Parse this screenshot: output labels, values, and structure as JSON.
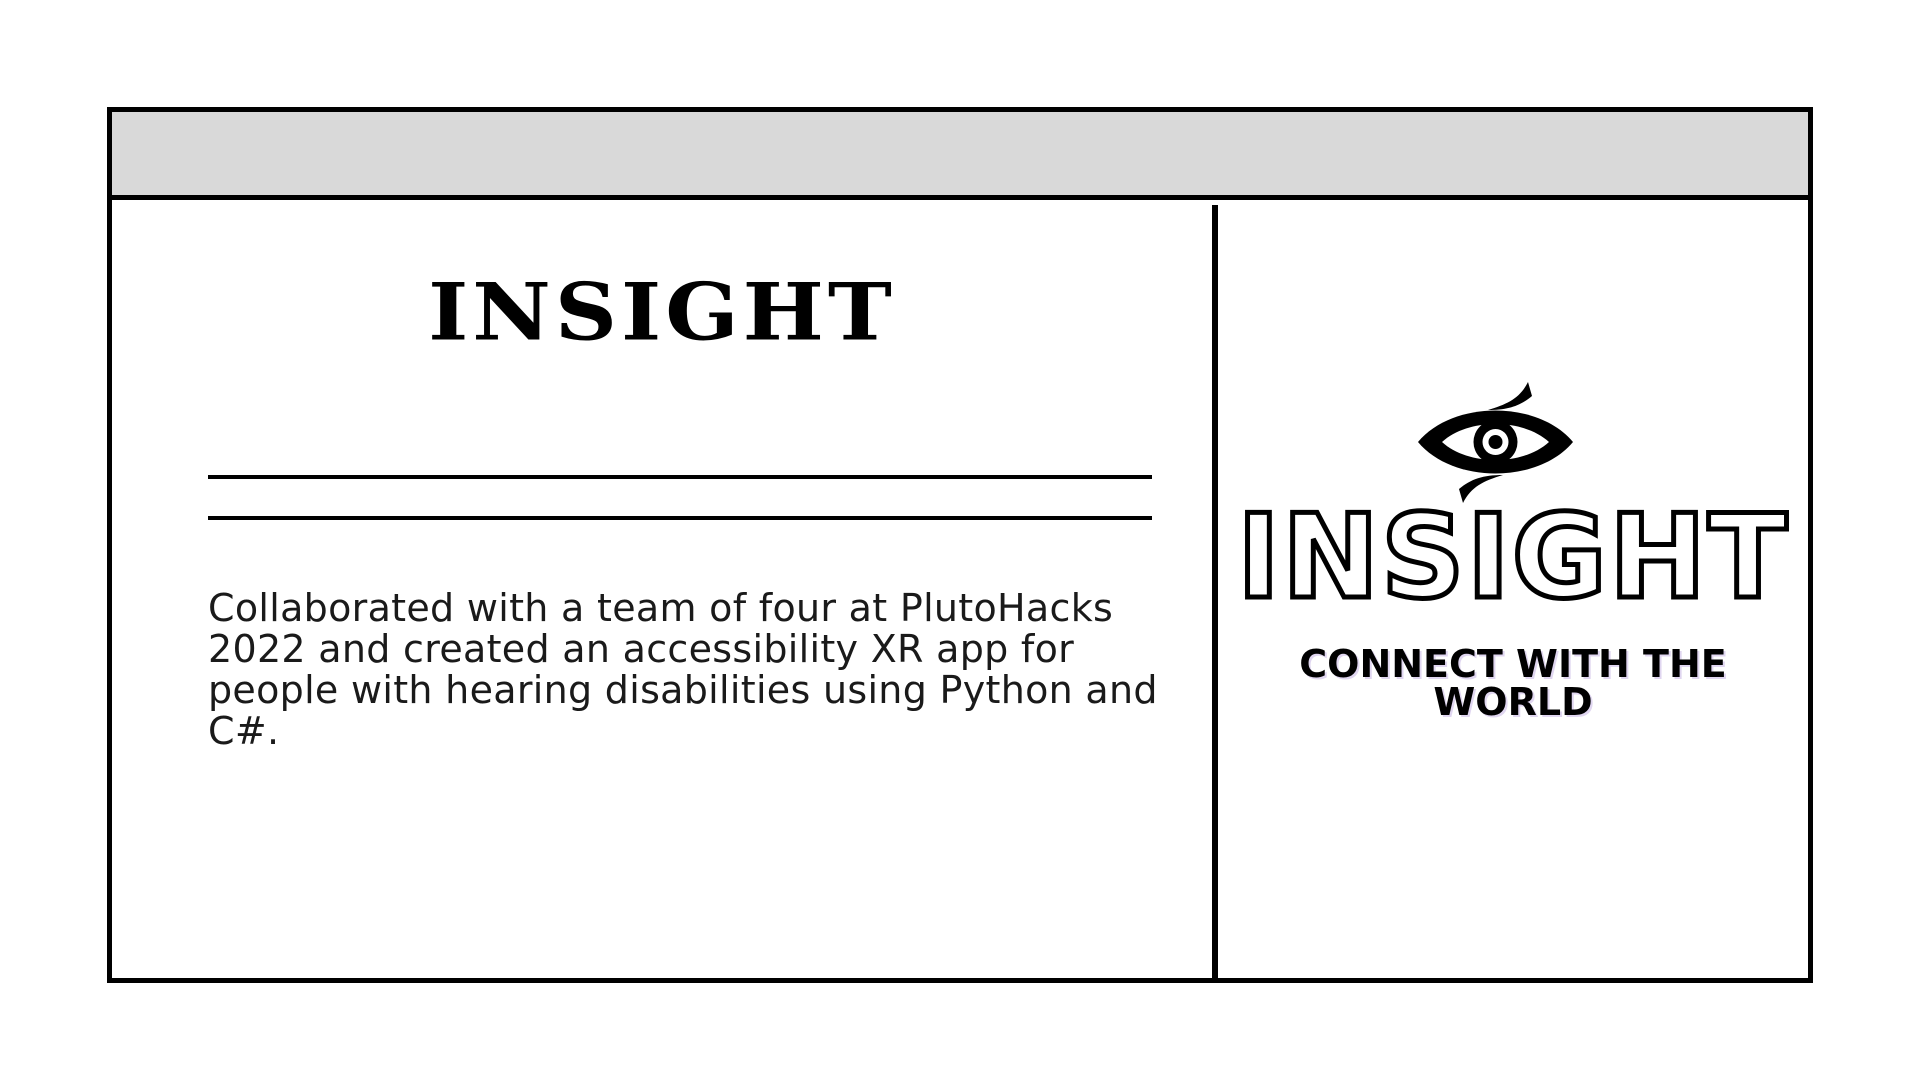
{
  "project": {
    "title": "INSIGHT",
    "description": "Collaborated with a team of four at PlutoHacks 2022 and created an accessibility XR app for people with hearing disabilities using Python and C#."
  },
  "logo": {
    "icon": "eye-icon",
    "wordmark": "INSIGHT",
    "tagline": "CONNECT WITH THE WORLD"
  },
  "colors": {
    "title_bar": "#d9d9d9",
    "border": "#000000",
    "background": "#ffffff"
  }
}
